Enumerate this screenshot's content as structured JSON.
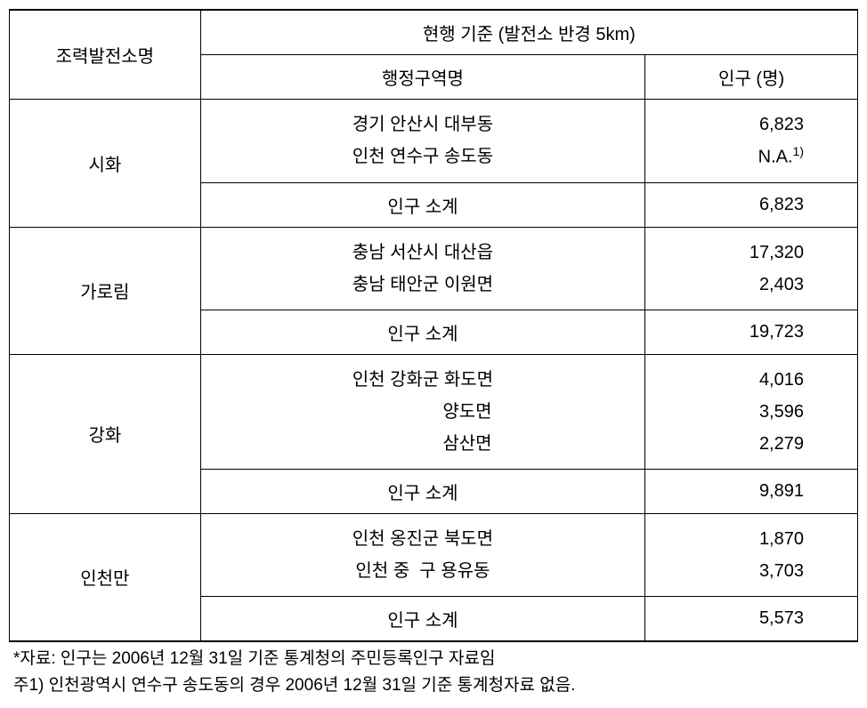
{
  "table": {
    "header": {
      "plant_name": "조력발전소명",
      "criteria": "현행 기준 (발전소 반경 5km)",
      "admin_region": "행정구역명",
      "population": "인구 (명)"
    },
    "groups": [
      {
        "name": "시화",
        "rows": [
          {
            "admin": "경기 안산시 대부동",
            "pop": "6,823"
          },
          {
            "admin": "인천 연수구 송도동",
            "pop": "N.A.",
            "pop_sup": "1)"
          }
        ],
        "subtotal_label": "인구 소계",
        "subtotal_value": "6,823"
      },
      {
        "name": "가로림",
        "rows": [
          {
            "admin": "충남 서산시 대산읍",
            "pop": "17,320"
          },
          {
            "admin": "충남 태안군 이원면",
            "pop": "2,403"
          }
        ],
        "subtotal_label": "인구 소계",
        "subtotal_value": "19,723"
      },
      {
        "name": "강화",
        "rows": [
          {
            "admin": "인천 강화군 화도면",
            "pop": "4,016"
          },
          {
            "admin": "                  양도면",
            "pop": "3,596"
          },
          {
            "admin": "                  삼산면",
            "pop": "2,279"
          }
        ],
        "subtotal_label": "인구 소계",
        "subtotal_value": "9,891"
      },
      {
        "name": "인천만",
        "rows": [
          {
            "admin": "인천 옹진군 북도면",
            "pop": "1,870"
          },
          {
            "admin": "인천 중  구 용유동",
            "pop": "3,703"
          }
        ],
        "subtotal_label": "인구 소계",
        "subtotal_value": "5,573"
      }
    ]
  },
  "footnotes": {
    "line1": "*자료: 인구는 2006년 12월 31일 기준 통계청의 주민등록인구 자료임",
    "line2": "주1) 인천광역시 연수구 송도동의 경우 2006년 12월 31일 기준 통계청자료 없음."
  },
  "style": {
    "font_family": "Malgun Gothic",
    "font_size_cell": 20,
    "font_size_footnote": 19,
    "border_color": "#000000",
    "background_color": "#ffffff"
  }
}
